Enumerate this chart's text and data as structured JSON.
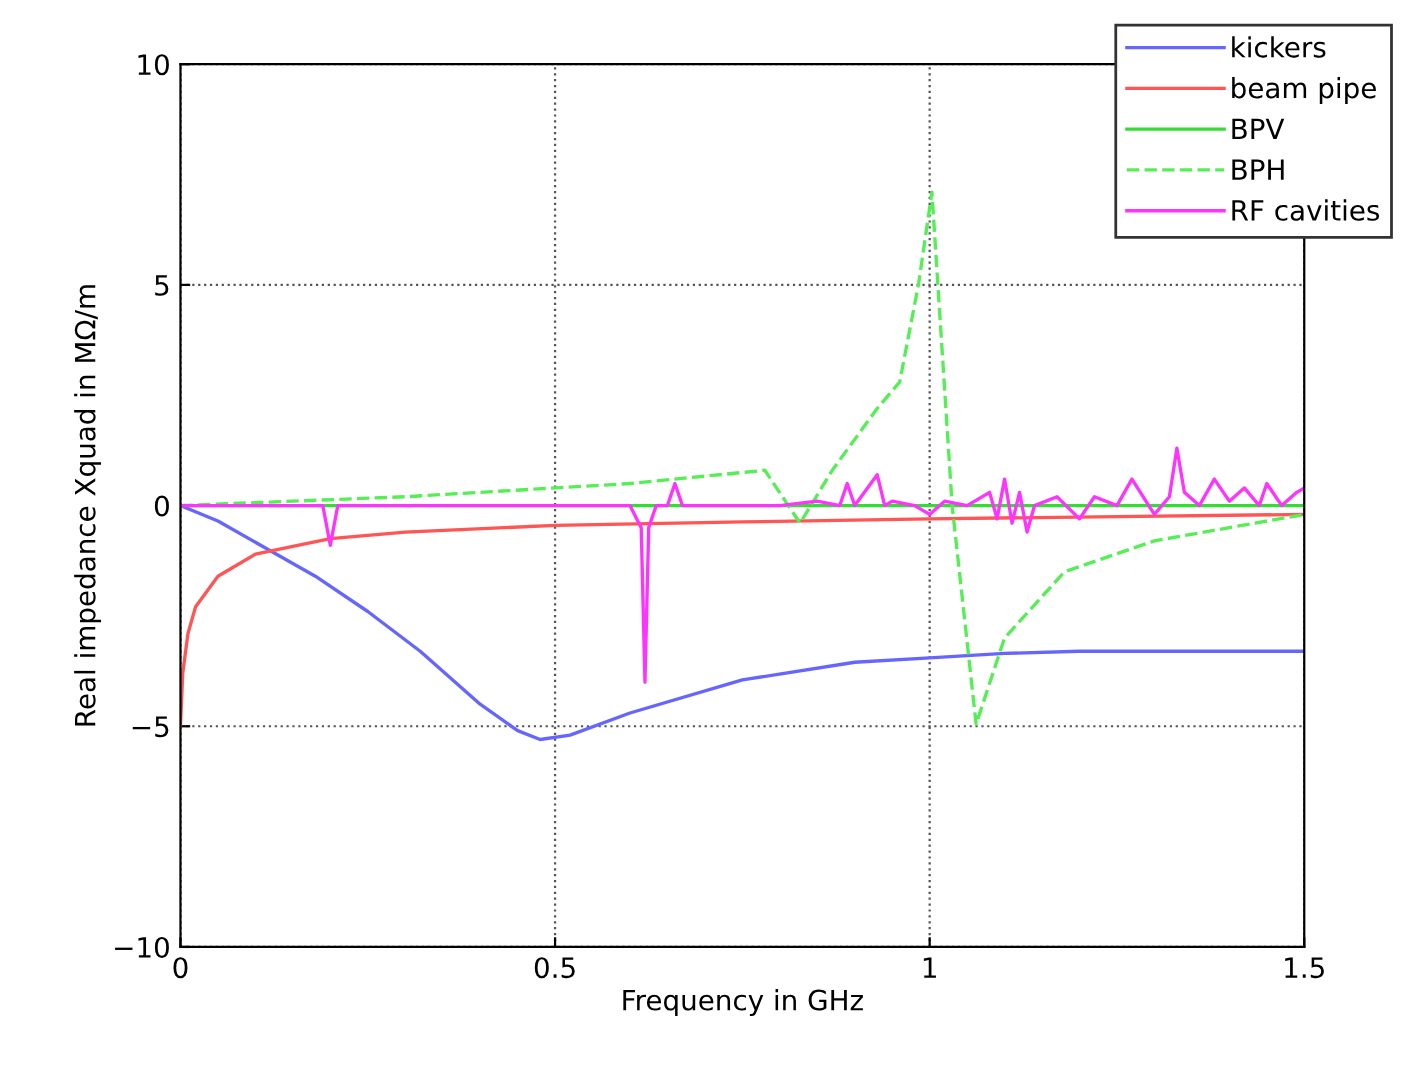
{
  "chart_data": {
    "type": "line",
    "xlabel": "Frequency in GHz",
    "ylabel": "Real impedance Xquad in MΩ/m",
    "xlim": [
      0,
      1.5
    ],
    "ylim": [
      -10,
      10
    ],
    "xticks": [
      0,
      0.5,
      1,
      1.5
    ],
    "yticks": [
      -10,
      -5,
      0,
      5,
      10
    ],
    "grid": true,
    "legend": "top right",
    "line_style": "solid",
    "marker": "none",
    "series": [
      {
        "name": "kickers",
        "color": "#6666ff",
        "x": [
          0,
          0.05,
          0.107,
          0.18,
          0.25,
          0.32,
          0.4,
          0.45,
          0.48,
          0.52,
          0.6,
          0.75,
          0.9,
          1.0,
          1.1,
          1.2,
          1.5
        ],
        "values": [
          0,
          -0.35,
          -0.9,
          -1.6,
          -2.4,
          -3.3,
          -4.5,
          -5.1,
          -5.3,
          -5.2,
          -4.7,
          -3.95,
          -3.55,
          -3.45,
          -3.35,
          -3.3,
          -3.3
        ]
      },
      {
        "name": "beam pipe",
        "color": "#ff5555",
        "x": [
          0,
          0.003,
          0.01,
          0.02,
          0.05,
          0.1,
          0.2,
          0.3,
          0.5,
          0.75,
          1.0,
          1.25,
          1.5
        ],
        "values": [
          -5,
          -3.8,
          -2.9,
          -2.3,
          -1.6,
          -1.1,
          -0.75,
          -0.6,
          -0.45,
          -0.37,
          -0.3,
          -0.25,
          -0.2
        ]
      },
      {
        "name": "BPV",
        "color": "#33dd33",
        "x": [
          0,
          0.5,
          1.0,
          1.5
        ],
        "values": [
          0,
          0,
          0,
          0
        ]
      },
      {
        "name": "BPH",
        "color": "#55ee55",
        "line_style": "dashed",
        "x": [
          0,
          0.3,
          0.6,
          0.78,
          0.827,
          0.87,
          0.9,
          0.93,
          0.96,
          0.985,
          1.003,
          1.03,
          1.062,
          1.1,
          1.18,
          1.3,
          1.4,
          1.5
        ],
        "values": [
          0,
          0.2,
          0.5,
          0.8,
          -0.4,
          0.8,
          1.5,
          2.2,
          2.8,
          5,
          7.1,
          0,
          -4.95,
          -3,
          -1.5,
          -0.8,
          -0.5,
          -0.2
        ]
      },
      {
        "name": "RF cavities",
        "color": "#ff33ff",
        "x": [
          0,
          0.19,
          0.2,
          0.21,
          0.4,
          0.6,
          0.615,
          0.62,
          0.625,
          0.635,
          0.65,
          0.66,
          0.67,
          0.7,
          0.8,
          0.85,
          0.88,
          0.89,
          0.9,
          0.93,
          0.94,
          0.95,
          0.98,
          1.0,
          1.02,
          1.05,
          1.08,
          1.09,
          1.1,
          1.11,
          1.12,
          1.13,
          1.14,
          1.17,
          1.2,
          1.22,
          1.25,
          1.27,
          1.3,
          1.32,
          1.33,
          1.34,
          1.36,
          1.38,
          1.4,
          1.42,
          1.44,
          1.45,
          1.47,
          1.49,
          1.5
        ],
        "values": [
          0,
          0,
          -0.9,
          0,
          0,
          0,
          -0.5,
          -4,
          -0.5,
          0,
          0,
          0.5,
          0,
          0,
          0,
          0.1,
          0,
          0.5,
          0,
          0.7,
          0,
          0.1,
          0,
          -0.2,
          0.1,
          0,
          0.3,
          -0.3,
          0.6,
          -0.4,
          0.3,
          -0.6,
          0,
          0.2,
          -0.3,
          0.2,
          0,
          0.6,
          -0.2,
          0.2,
          1.3,
          0.3,
          0,
          0.6,
          0.1,
          0.4,
          0,
          0.5,
          0,
          0.3,
          0.4
        ]
      }
    ]
  }
}
